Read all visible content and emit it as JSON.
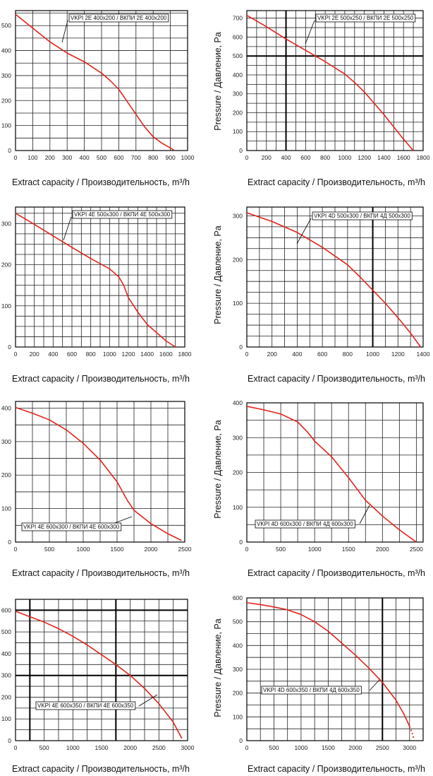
{
  "chart_data": [
    {
      "type": "line",
      "ylabel": "",
      "xlabel": "Extract capacity / Производительность, m³/h",
      "x_ticks": [
        "0",
        "100",
        "200",
        "300",
        "400",
        "500",
        "600",
        "700",
        "800",
        "900",
        "1000"
      ],
      "y_ticks": [
        "0",
        "100",
        "200",
        "300",
        "400",
        "500"
      ],
      "xlim": [
        0,
        1000
      ],
      "ylim": [
        0,
        560
      ],
      "x_minor_step": 100,
      "y_minor_step": 50,
      "x_major": [],
      "y_major": [],
      "series": [
        {
          "name": "VKPI 2E 400x200 / ВКПИ 2E 400x200",
          "x": [
            0,
            100,
            200,
            300,
            400,
            500,
            550,
            600,
            650,
            700,
            750,
            800,
            850,
            900,
            920
          ],
          "y": [
            545,
            490,
            435,
            390,
            355,
            310,
            280,
            245,
            195,
            145,
            95,
            55,
            30,
            10,
            2
          ]
        }
      ],
      "color": "#e3231b"
    },
    {
      "type": "line",
      "ylabel": "Pressure / Давление, Pa",
      "xlabel": "Extract capacity / Производительность, m³/h",
      "x_ticks": [
        "0",
        "200",
        "400",
        "600",
        "800",
        "1000",
        "1200",
        "1400",
        "1600",
        "1800"
      ],
      "y_ticks": [
        "0",
        "100",
        "200",
        "300",
        "400",
        "500",
        "600",
        "700"
      ],
      "xlim": [
        0,
        1800
      ],
      "ylim": [
        0,
        740
      ],
      "x_minor_step": 100,
      "y_minor_step": 50,
      "x_major": [
        400
      ],
      "y_major": [
        500
      ],
      "series": [
        {
          "name": "VKPI 2E 500x250 / ВКПИ 2E 500x250",
          "x": [
            0,
            200,
            400,
            600,
            800,
            1000,
            1100,
            1200,
            1300,
            1400,
            1500,
            1600,
            1700
          ],
          "y": [
            715,
            655,
            590,
            530,
            470,
            405,
            360,
            310,
            250,
            190,
            125,
            60,
            0
          ]
        }
      ],
      "color": "#e3231b"
    },
    {
      "type": "line",
      "ylabel": "",
      "xlabel": "Extract capacity / Производительность, m³/h",
      "x_ticks": [
        "0",
        "200",
        "400",
        "600",
        "800",
        "1000",
        "1200",
        "1400",
        "1600",
        "1800"
      ],
      "y_ticks": [
        "0",
        "100",
        "200",
        "300"
      ],
      "xlim": [
        0,
        1800
      ],
      "ylim": [
        0,
        340
      ],
      "x_minor_step": 100,
      "y_minor_step": 25,
      "x_major": [],
      "y_major": [],
      "series": [
        {
          "name": "VKPI 4E 500x300 / ВКПИ 4E 500x300",
          "x": [
            0,
            200,
            400,
            600,
            800,
            1000,
            1100,
            1150,
            1200,
            1300,
            1400,
            1500,
            1600,
            1700
          ],
          "y": [
            325,
            298,
            270,
            242,
            215,
            190,
            170,
            150,
            120,
            85,
            55,
            35,
            15,
            0
          ]
        }
      ],
      "color": "#e3231b"
    },
    {
      "type": "line",
      "ylabel": "Pressure / Давление, Pa",
      "xlabel": "Extract capacity / Производительность, m³/h",
      "x_ticks": [
        "0",
        "200",
        "400",
        "600",
        "800",
        "1000",
        "1200",
        "1400"
      ],
      "y_ticks": [
        "0",
        "100",
        "200",
        "300"
      ],
      "xlim": [
        0,
        1400
      ],
      "ylim": [
        0,
        320
      ],
      "x_minor_step": 100,
      "y_minor_step": 25,
      "x_major": [
        1000
      ],
      "y_major": [],
      "series": [
        {
          "name": "VKPI 4D 500x300 / ВКПИ 4Д 500x300",
          "x": [
            0,
            200,
            400,
            600,
            800,
            900,
            1000,
            1100,
            1200,
            1300,
            1380
          ],
          "y": [
            307,
            287,
            262,
            228,
            188,
            160,
            130,
            100,
            67,
            32,
            0
          ]
        }
      ],
      "color": "#e3231b"
    },
    {
      "type": "line",
      "ylabel": "",
      "xlabel": "Extract capacity / Производительность, m³/h",
      "x_ticks": [
        "0",
        "500",
        "1000",
        "1500",
        "2000",
        "2500"
      ],
      "y_ticks": [
        "0",
        "100",
        "200",
        "300",
        "400"
      ],
      "xlim": [
        0,
        2500
      ],
      "ylim": [
        0,
        420
      ],
      "x_minor_step": 250,
      "y_minor_step": 50,
      "x_major": [],
      "y_major": [],
      "series": [
        {
          "name": "VKPI 4E 600x300 / ВКПИ 4E 600x300",
          "x": [
            0,
            250,
            500,
            750,
            1000,
            1250,
            1500,
            1650,
            1750,
            2000,
            2250,
            2450
          ],
          "y": [
            402,
            385,
            365,
            335,
            295,
            245,
            180,
            125,
            95,
            55,
            25,
            5
          ]
        }
      ],
      "color": "#e3231b"
    },
    {
      "type": "line",
      "ylabel": "Pressure / Давление, Pa",
      "xlabel": "Extract capacity / Производительность, m³/h",
      "x_ticks": [
        "0",
        "500",
        "1000",
        "1500",
        "2000",
        "2500"
      ],
      "y_ticks": [
        "0",
        "100",
        "200",
        "300",
        "400"
      ],
      "xlim": [
        0,
        2600
      ],
      "ylim": [
        0,
        400
      ],
      "x_minor_step": 250,
      "y_minor_step": 50,
      "x_major": [],
      "y_major": [],
      "series": [
        {
          "name": "VKPI 4D 600x300 / ВКПИ 4Д 600x300",
          "x": [
            0,
            250,
            500,
            750,
            900,
            1000,
            1250,
            1500,
            1750,
            2000,
            2250,
            2500
          ],
          "y": [
            390,
            380,
            368,
            345,
            315,
            290,
            245,
            185,
            120,
            75,
            35,
            0
          ]
        }
      ],
      "color": "#e3231b"
    },
    {
      "type": "line",
      "ylabel": "",
      "xlabel": "Extract capacity / Производительность, m³/h",
      "x_ticks": [
        "0",
        "500",
        "1000",
        "1500",
        "2000",
        "2500",
        "3000"
      ],
      "y_ticks": [
        "0",
        "100",
        "200",
        "300",
        "400",
        "500",
        "600"
      ],
      "xlim": [
        0,
        3000
      ],
      "ylim": [
        0,
        650
      ],
      "x_minor_step": 250,
      "y_minor_step": 50,
      "x_major": [
        250,
        1750
      ],
      "y_major": [
        300,
        600
      ],
      "series": [
        {
          "name": "VKPI 4E 600x350 / ВКПИ 4E 600x350",
          "x": [
            0,
            250,
            500,
            750,
            1000,
            1250,
            1500,
            1750,
            2000,
            2250,
            2500,
            2750,
            2900
          ],
          "y": [
            595,
            570,
            545,
            515,
            480,
            440,
            395,
            350,
            300,
            240,
            170,
            85,
            10
          ]
        }
      ],
      "color": "#e3231b"
    },
    {
      "type": "line",
      "ylabel": "Pressure / Давление, Pa",
      "xlabel": "Extract capacity / Производительность, m³/h",
      "x_ticks": [
        "0",
        "500",
        "1000",
        "1500",
        "2000",
        "2500",
        "3000"
      ],
      "y_ticks": [
        "0",
        "100",
        "200",
        "300",
        "400",
        "500",
        "600"
      ],
      "xlim": [
        0,
        3250
      ],
      "ylim": [
        0,
        600
      ],
      "x_minor_step": 250,
      "y_minor_step": 50,
      "x_major": [
        2500
      ],
      "y_major": [],
      "series": [
        {
          "name": "VKPI 4D 600x350 / ВКПИ 4Д 600x350",
          "x": [
            0,
            250,
            500,
            750,
            1000,
            1250,
            1500,
            1750,
            2000,
            2250,
            2500,
            2750,
            2900,
            3000
          ],
          "y": [
            580,
            572,
            562,
            550,
            530,
            500,
            460,
            410,
            360,
            305,
            245,
            170,
            110,
            60
          ],
          "dotted_tail": {
            "x": [
              3000,
              3050,
              3080
            ],
            "y": [
              60,
              30,
              5
            ]
          }
        }
      ],
      "color": "#e3231b"
    }
  ]
}
